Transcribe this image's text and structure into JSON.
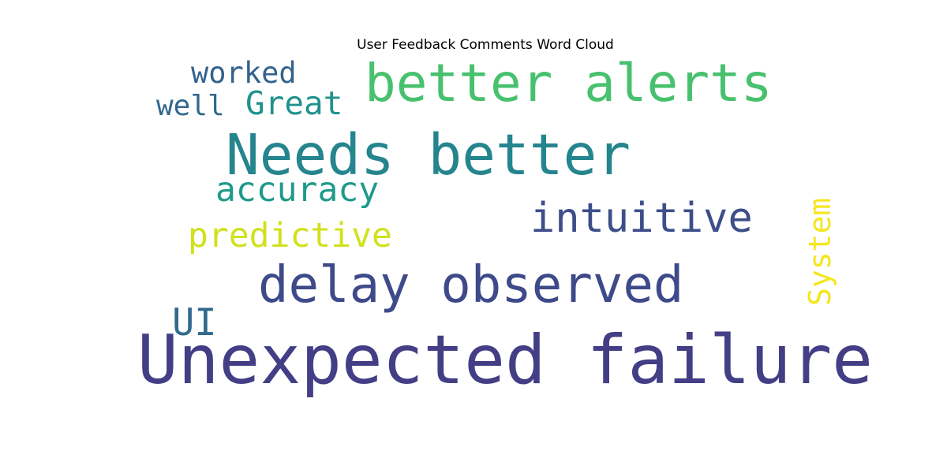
{
  "chart_data": {
    "type": "wordcloud",
    "title": "User Feedback Comments Word Cloud",
    "words": [
      {
        "text": "Unexpected failure",
        "weight": 1.0,
        "color": "#433e85"
      },
      {
        "text": "Needs better",
        "weight": 0.82,
        "color": "#25858e"
      },
      {
        "text": "better alerts",
        "weight": 0.77,
        "color": "#48c16e"
      },
      {
        "text": "delay observed",
        "weight": 0.74,
        "color": "#3e4a89"
      },
      {
        "text": "intuitive",
        "weight": 0.61,
        "color": "#3d4e8a"
      },
      {
        "text": "UI",
        "weight": 0.55,
        "color": "#306a8e"
      },
      {
        "text": "predictive",
        "weight": 0.5,
        "color": "#d0e11c"
      },
      {
        "text": "accuracy",
        "weight": 0.5,
        "color": "#1f9a8a"
      },
      {
        "text": "Great",
        "weight": 0.48,
        "color": "#21918c"
      },
      {
        "text": "System",
        "weight": 0.44,
        "color": "#f4e61e"
      },
      {
        "text": "worked",
        "weight": 0.43,
        "color": "#33638d"
      },
      {
        "text": "well",
        "weight": 0.42,
        "color": "#31688e"
      }
    ]
  }
}
